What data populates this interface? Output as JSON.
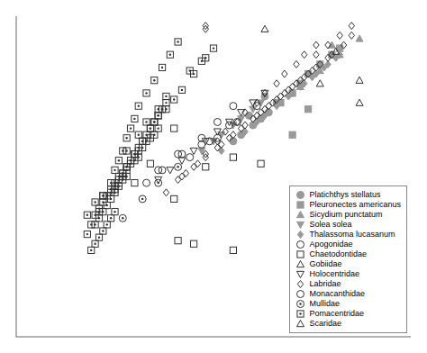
{
  "chart_data": {
    "type": "scatter",
    "xlim": [
      0,
      100
    ],
    "ylim": [
      0,
      100
    ],
    "xticks": [
      0,
      20,
      40,
      60,
      80,
      100
    ],
    "yticks": [
      0,
      20,
      40,
      60,
      80,
      100
    ],
    "tick_labels": false,
    "grid": false,
    "legend": "lower right",
    "series": [
      {
        "name": "Platichthys stellatus",
        "color": "#999999",
        "marker": "circle",
        "x": [
          57,
          60,
          62,
          64,
          66,
          55,
          59,
          63
        ],
        "values": [
          63,
          66,
          68,
          70,
          73,
          61,
          69,
          75
        ]
      },
      {
        "name": "Pleuronectes americanus",
        "color": "#999999",
        "marker": "square",
        "x": [
          67,
          70,
          72,
          74,
          77,
          80,
          82,
          70,
          74
        ],
        "values": [
          73,
          76,
          79,
          82,
          85,
          88,
          90,
          63,
          71
        ]
      },
      {
        "name": "Sicydium punctatum",
        "color": "#999999",
        "marker": "triangle",
        "x": [
          72,
          77,
          82,
          87,
          80
        ],
        "values": [
          78,
          83,
          88,
          93,
          91
        ]
      },
      {
        "name": "Solea solea",
        "color": "#999999",
        "marker": "triangle-down",
        "x": [
          47,
          50,
          52,
          55,
          57,
          60,
          62
        ],
        "values": [
          58,
          61,
          63,
          66,
          68,
          71,
          73
        ]
      },
      {
        "name": "Thalassoma lucasanum",
        "color": "#999999",
        "marker": "diamond",
        "x": [
          52,
          55,
          58,
          61,
          64,
          67,
          70,
          73,
          76,
          79,
          82,
          57,
          60,
          63,
          66,
          69,
          72,
          75,
          78,
          81
        ],
        "values": [
          58,
          61,
          64,
          67,
          70,
          73,
          76,
          79,
          82,
          85,
          88,
          63,
          66,
          69,
          72,
          75,
          78,
          81,
          84,
          87
        ]
      },
      {
        "name": "Apogonidae",
        "color": "#333333",
        "marker": "open-circle",
        "x": [
          33,
          37,
          42,
          47,
          51,
          55,
          44,
          49,
          54
        ],
        "values": [
          48,
          52,
          57,
          62,
          67,
          72,
          56,
          61,
          66
        ]
      },
      {
        "name": "Chaetodontidae",
        "color": "#333333",
        "marker": "open-square",
        "x": [
          34,
          40,
          48,
          40,
          55,
          62,
          30,
          45,
          55,
          41
        ],
        "values": [
          54,
          43,
          53,
          65,
          56,
          54,
          48,
          29,
          27,
          30
        ]
      },
      {
        "name": "Gobiidae",
        "color": "#333333",
        "marker": "open-triangle",
        "x": [
          77,
          81,
          87,
          63
        ],
        "values": [
          79,
          89,
          73,
          96
        ]
      },
      {
        "name": "Holocentridae",
        "color": "#333333",
        "marker": "open-triangle-down",
        "x": [
          36,
          39,
          42,
          45,
          48,
          51,
          54,
          57,
          60,
          63
        ],
        "values": [
          49,
          52,
          55,
          58,
          61,
          64,
          67,
          70,
          73,
          76
        ]
      },
      {
        "name": "Labridae",
        "color": "#333333",
        "marker": "open-diamond",
        "x": [
          38,
          41,
          43,
          46,
          48,
          51,
          53,
          56,
          58,
          61,
          63,
          66,
          68,
          71,
          73,
          76,
          42,
          45,
          48,
          51,
          54,
          57,
          60,
          63,
          66,
          69,
          72,
          75,
          52,
          55,
          58,
          61,
          64,
          67,
          70,
          73,
          76,
          79,
          62,
          65,
          68,
          71,
          74,
          77,
          80,
          83,
          85,
          76,
          79,
          82,
          85,
          48,
          48
        ],
        "values": [
          45,
          49,
          51,
          54,
          57,
          61,
          64,
          67,
          70,
          73,
          76,
          79,
          82,
          85,
          88,
          91,
          50,
          53,
          56,
          59,
          62,
          65,
          68,
          71,
          74,
          77,
          80,
          83,
          60,
          63,
          66,
          69,
          72,
          75,
          78,
          81,
          84,
          87,
          70,
          73,
          76,
          79,
          82,
          85,
          88,
          91,
          94,
          88,
          91,
          94,
          97,
          96,
          97
        ]
      },
      {
        "name": "Monacanthidae",
        "color": "#333333",
        "marker": "open-circle",
        "x": [
          36,
          41,
          51,
          56,
          61,
          47
        ],
        "values": [
          52,
          57,
          62,
          67,
          72,
          60
        ]
      },
      {
        "name": "Mullidae",
        "color": "#333333",
        "marker": "dotted-circle",
        "x": [
          27,
          32,
          36,
          41
        ],
        "values": [
          37,
          43,
          48,
          53
        ]
      },
      {
        "name": "Pomacentridae",
        "color": "#333333",
        "marker": "dotted-square",
        "x": [
          18,
          20,
          21,
          22,
          24,
          25,
          25,
          26,
          26,
          27,
          27,
          28,
          28,
          29,
          30,
          30,
          31,
          31,
          32,
          33,
          34,
          35,
          36,
          18,
          19,
          20,
          21,
          22,
          23,
          24,
          25,
          26,
          27,
          28,
          30,
          32,
          34,
          36,
          20,
          21,
          22,
          23,
          24,
          25,
          26,
          27,
          28,
          29,
          30,
          31,
          32,
          33,
          34,
          35,
          36,
          37,
          38,
          22,
          24,
          25,
          26,
          27,
          28,
          29,
          30,
          31,
          33,
          35,
          37,
          39,
          41,
          35,
          38,
          40,
          42,
          45,
          47,
          50,
          48,
          44,
          28,
          31,
          33,
          36,
          38,
          19,
          20,
          21,
          22,
          23,
          24,
          25
        ],
        "values": [
          38,
          42,
          39,
          44,
          46,
          48,
          45,
          50,
          47,
          51,
          49,
          53,
          50,
          54,
          55,
          57,
          58,
          56,
          59,
          61,
          62,
          63,
          65,
          32,
          35,
          38,
          40,
          42,
          44,
          45,
          47,
          49,
          51,
          53,
          57,
          61,
          65,
          69,
          35,
          37,
          39,
          41,
          43,
          46,
          48,
          50,
          52,
          55,
          57,
          59,
          61,
          63,
          65,
          67,
          69,
          71,
          73,
          44,
          48,
          52,
          55,
          58,
          62,
          65,
          68,
          72,
          76,
          80,
          84,
          88,
          92,
          67,
          71,
          74,
          77,
          82,
          86,
          90,
          87,
          83,
          58,
          63,
          67,
          71,
          75,
          27,
          29,
          31,
          33,
          35,
          37,
          39
        ]
      },
      {
        "name": "Scaridae",
        "color": "#333333",
        "marker": "open-triangle",
        "x": [
          87
        ],
        "values": [
          80
        ]
      }
    ]
  }
}
